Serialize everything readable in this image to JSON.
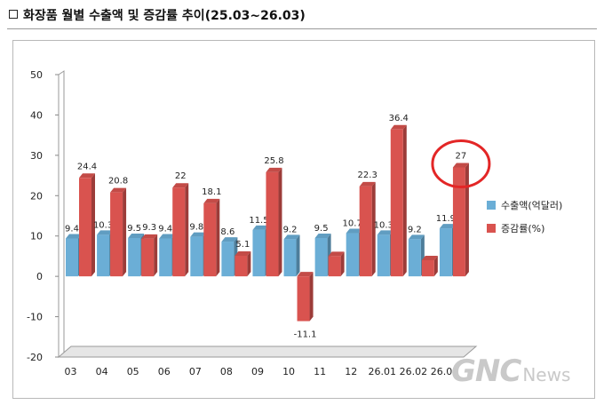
{
  "header": {
    "title": "화장품 월별 수출액 및 증감률 추이(25.03~26.03)"
  },
  "legend": [
    {
      "label": "수출액(억달러)",
      "color": "#6baed6"
    },
    {
      "label": "증감률(%)",
      "color": "#d9534f"
    }
  ],
  "watermark": {
    "brand": "GNC",
    "suffix": "News"
  },
  "chart_data": {
    "type": "bar",
    "title": "화장품 월별 수출액 및 증감률 추이(25.03~26.03)",
    "categories": [
      "03",
      "04",
      "05",
      "06",
      "07",
      "08",
      "09",
      "10",
      "11",
      "12",
      "26.01",
      "26.02",
      "26.03"
    ],
    "ylim": [
      -20,
      50
    ],
    "yticks": [
      -20,
      -10,
      0,
      10,
      20,
      30,
      40,
      50
    ],
    "grid": false,
    "legend_position": "right",
    "series": [
      {
        "name": "수출액(억달러)",
        "color": "#6baed6",
        "values": [
          9.4,
          10.3,
          9.5,
          9.4,
          9.8,
          8.6,
          11.5,
          9.2,
          9.5,
          10.7,
          10.3,
          9.2,
          11.9
        ],
        "labels": [
          "9.4",
          "10.3",
          "9.5",
          "9.4",
          "9.8",
          "8.6",
          "11.5",
          "9.2",
          "9.5",
          "10.7",
          "10.3",
          "9.2",
          "11.9"
        ]
      },
      {
        "name": "증감률(%)",
        "color": "#d9534f",
        "values": [
          24.4,
          20.8,
          9.3,
          22,
          18.1,
          5.1,
          25.8,
          -11.1,
          5,
          22.3,
          36.4,
          4,
          27
        ],
        "labels": [
          "24.4",
          "20.8",
          "9.3",
          "22",
          "18.1",
          "5.1",
          "25.8",
          "-11.1",
          "",
          "22.3",
          "36.4",
          "",
          "27"
        ]
      }
    ],
    "annotation": {
      "type": "circle",
      "target_category": "26.03",
      "color": "#e32626"
    }
  }
}
